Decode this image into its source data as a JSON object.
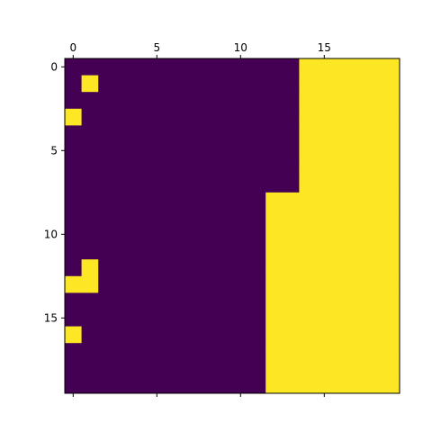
{
  "colors": {
    "low": "#440154",
    "high": "#fde725",
    "axis": "#000000",
    "background": "#ffffff"
  },
  "chart_data": {
    "type": "heatmap",
    "title": "",
    "xlabel": "",
    "ylabel": "",
    "x_axis_position": "top",
    "y_axis_position": "left",
    "y_inverted": true,
    "grid": false,
    "legend": "none",
    "rows": 20,
    "cols": 20,
    "xlim": [
      -0.5,
      19.5
    ],
    "ylim": [
      19.5,
      -0.5
    ],
    "x_ticks": [
      0,
      5,
      10,
      15
    ],
    "x_tick_labels": [
      "0",
      "5",
      "10",
      "15"
    ],
    "y_ticks": [
      0,
      5,
      10,
      15
    ],
    "y_tick_labels": [
      "0",
      "5",
      "10",
      "15"
    ],
    "values": [
      [
        0,
        0,
        0,
        0,
        0,
        0,
        0,
        0,
        0,
        0,
        0,
        0,
        0,
        0,
        1,
        1,
        1,
        1,
        1,
        1
      ],
      [
        0,
        1,
        0,
        0,
        0,
        0,
        0,
        0,
        0,
        0,
        0,
        0,
        0,
        0,
        1,
        1,
        1,
        1,
        1,
        1
      ],
      [
        0,
        0,
        0,
        0,
        0,
        0,
        0,
        0,
        0,
        0,
        0,
        0,
        0,
        0,
        1,
        1,
        1,
        1,
        1,
        1
      ],
      [
        1,
        0,
        0,
        0,
        0,
        0,
        0,
        0,
        0,
        0,
        0,
        0,
        0,
        0,
        1,
        1,
        1,
        1,
        1,
        1
      ],
      [
        0,
        0,
        0,
        0,
        0,
        0,
        0,
        0,
        0,
        0,
        0,
        0,
        0,
        0,
        1,
        1,
        1,
        1,
        1,
        1
      ],
      [
        0,
        0,
        0,
        0,
        0,
        0,
        0,
        0,
        0,
        0,
        0,
        0,
        0,
        0,
        1,
        1,
        1,
        1,
        1,
        1
      ],
      [
        0,
        0,
        0,
        0,
        0,
        0,
        0,
        0,
        0,
        0,
        0,
        0,
        0,
        0,
        1,
        1,
        1,
        1,
        1,
        1
      ],
      [
        0,
        0,
        0,
        0,
        0,
        0,
        0,
        0,
        0,
        0,
        0,
        0,
        0,
        0,
        1,
        1,
        1,
        1,
        1,
        1
      ],
      [
        0,
        0,
        0,
        0,
        0,
        0,
        0,
        0,
        0,
        0,
        0,
        0,
        1,
        1,
        1,
        1,
        1,
        1,
        1,
        1
      ],
      [
        0,
        0,
        0,
        0,
        0,
        0,
        0,
        0,
        0,
        0,
        0,
        0,
        1,
        1,
        1,
        1,
        1,
        1,
        1,
        1
      ],
      [
        0,
        0,
        0,
        0,
        0,
        0,
        0,
        0,
        0,
        0,
        0,
        0,
        1,
        1,
        1,
        1,
        1,
        1,
        1,
        1
      ],
      [
        0,
        0,
        0,
        0,
        0,
        0,
        0,
        0,
        0,
        0,
        0,
        0,
        1,
        1,
        1,
        1,
        1,
        1,
        1,
        1
      ],
      [
        0,
        1,
        0,
        0,
        0,
        0,
        0,
        0,
        0,
        0,
        0,
        0,
        1,
        1,
        1,
        1,
        1,
        1,
        1,
        1
      ],
      [
        1,
        1,
        0,
        0,
        0,
        0,
        0,
        0,
        0,
        0,
        0,
        0,
        1,
        1,
        1,
        1,
        1,
        1,
        1,
        1
      ],
      [
        0,
        0,
        0,
        0,
        0,
        0,
        0,
        0,
        0,
        0,
        0,
        0,
        1,
        1,
        1,
        1,
        1,
        1,
        1,
        1
      ],
      [
        0,
        0,
        0,
        0,
        0,
        0,
        0,
        0,
        0,
        0,
        0,
        0,
        1,
        1,
        1,
        1,
        1,
        1,
        1,
        1
      ],
      [
        1,
        0,
        0,
        0,
        0,
        0,
        0,
        0,
        0,
        0,
        0,
        0,
        1,
        1,
        1,
        1,
        1,
        1,
        1,
        1
      ],
      [
        0,
        0,
        0,
        0,
        0,
        0,
        0,
        0,
        0,
        0,
        0,
        0,
        1,
        1,
        1,
        1,
        1,
        1,
        1,
        1
      ],
      [
        0,
        0,
        0,
        0,
        0,
        0,
        0,
        0,
        0,
        0,
        0,
        0,
        1,
        1,
        1,
        1,
        1,
        1,
        1,
        1
      ],
      [
        0,
        0,
        0,
        0,
        0,
        0,
        0,
        0,
        0,
        0,
        0,
        0,
        1,
        1,
        1,
        1,
        1,
        1,
        1,
        1
      ]
    ]
  }
}
